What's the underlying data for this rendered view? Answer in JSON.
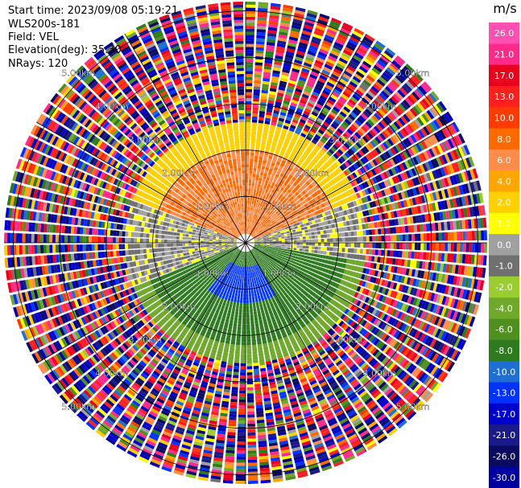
{
  "header": {
    "start_time": "Start time: 2023/09/08 05:19:21",
    "instrument": "WLS200s-181",
    "field": "Field: VEL",
    "elevation": "Elevation(deg): 35.30",
    "nrays": "NRays: 120"
  },
  "colorbar": {
    "unit": "m/s",
    "ticks": [
      "26.0",
      "21.0",
      "17.0",
      "13.0",
      "10.0",
      "8.0",
      "6.0",
      "4.0",
      "2.0",
      "1.0",
      "0.0",
      "-1.0",
      "-2.0",
      "-4.0",
      "-6.0",
      "-8.0",
      "-10.0",
      "-13.0",
      "-17.0",
      "-21.0",
      "-26.0",
      "-30.0"
    ],
    "colors": [
      "#ff4fb0",
      "#ff2a8a",
      "#e8001e",
      "#ff1f1f",
      "#ff3b00",
      "#ff6a00",
      "#ff8c4a",
      "#ffa500",
      "#ffd000",
      "#ffff00",
      "#a0a0a0",
      "#707070",
      "#9acd32",
      "#6fa82a",
      "#4f8f1f",
      "#2d7a1f",
      "#1f6fd0",
      "#0033ff",
      "#0000cc",
      "#1a1a8a",
      "#0a0a60",
      "#0000a0"
    ]
  },
  "chart_data": {
    "type": "heatmap",
    "projection": "polar PPI",
    "field": "VEL",
    "units": "m/s",
    "nrays": 120,
    "range_rings_km": [
      1.0,
      2.0,
      3.0,
      4.0,
      5.0
    ],
    "ring_labels": [
      "1.00km",
      "2.00km",
      "3.00km",
      "4.00km",
      "5.00km"
    ],
    "spokes_deg": [
      0,
      30,
      60,
      90,
      120,
      150,
      180,
      210,
      240,
      270,
      300,
      330
    ],
    "regions": [
      {
        "area": "north inner",
        "range_km": [
          0.3,
          2.0
        ],
        "sector_deg": [
          290,
          70
        ],
        "velocity_ms": [
          6.0,
          10.0
        ]
      },
      {
        "area": "north outer",
        "range_km": [
          1.5,
          2.6
        ],
        "sector_deg": [
          270,
          90
        ],
        "velocity_ms": [
          2.0,
          4.0
        ]
      },
      {
        "area": "south inner",
        "range_km": [
          0.5,
          1.3
        ],
        "sector_deg": [
          150,
          220
        ],
        "velocity_ms": [
          -10.0,
          -13.0
        ]
      },
      {
        "area": "south",
        "range_km": [
          0.2,
          2.5
        ],
        "sector_deg": [
          100,
          260
        ],
        "velocity_ms": [
          -6.0,
          -8.0
        ]
      },
      {
        "area": "west / east",
        "range_km": [
          0.2,
          2.6
        ],
        "sector_deg": [
          250,
          290
        ],
        "velocity_ms": [
          -2.0,
          0.0
        ]
      },
      {
        "area": "outer noise",
        "range_km": [
          2.6,
          5.2
        ],
        "sector_deg": [
          0,
          360
        ],
        "velocity_ms": [
          -30.0,
          26.0
        ]
      }
    ]
  }
}
